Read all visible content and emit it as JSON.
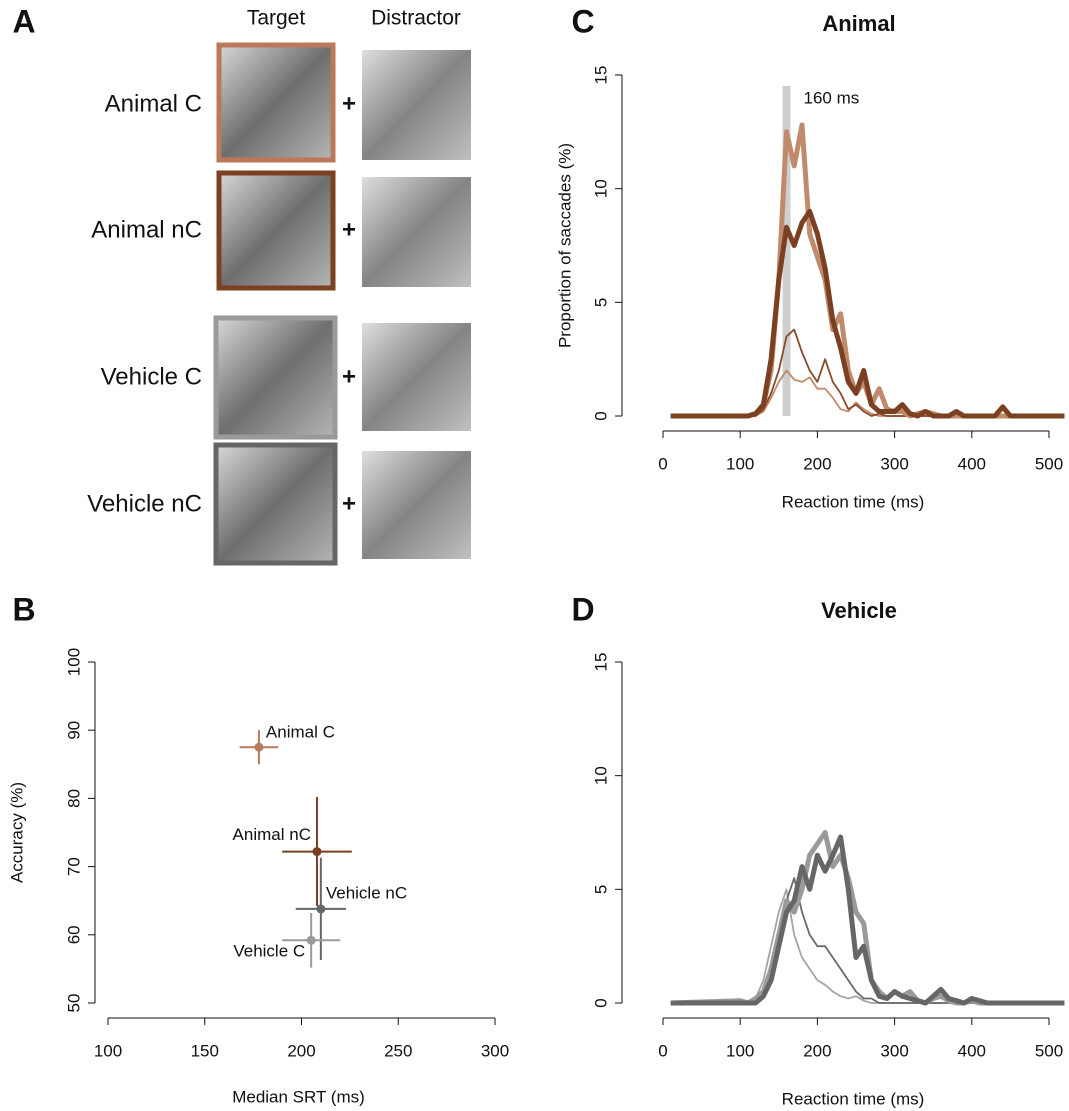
{
  "panel_labels": [
    "A",
    "B",
    "C",
    "D"
  ],
  "stimuli": {
    "headers": [
      "Target",
      "Distractor"
    ],
    "separator": "+",
    "rows": [
      {
        "label": "Animal C",
        "color": "#b9795a"
      },
      {
        "label": "Animal nC",
        "color": "#7b3f22"
      },
      {
        "label": "Vehicle C",
        "color": "#9a9a9a"
      },
      {
        "label": "Vehicle nC",
        "color": "#666666"
      }
    ]
  },
  "chart_data": [
    {
      "type": "scatter",
      "xlabel": "Median SRT (ms)",
      "ylabel": "Accuracy (%)",
      "xlim": [
        100,
        300
      ],
      "xticks": [
        100,
        150,
        200,
        250,
        300
      ],
      "ylim": [
        50,
        100
      ],
      "yticks": [
        50,
        60,
        70,
        80,
        90,
        100
      ],
      "series": [
        {
          "name": "Animal C",
          "color": "#b9795a",
          "x": [
            178
          ],
          "values": [
            87.5
          ],
          "xerr": [
            10
          ],
          "yerr": [
            2.5
          ]
        },
        {
          "name": "Animal nC",
          "color": "#7b3f22",
          "x": [
            208
          ],
          "values": [
            72.2
          ],
          "xerr": [
            18
          ],
          "yerr": [
            8
          ]
        },
        {
          "name": "Vehicle nC",
          "color": "#666666",
          "x": [
            210
          ],
          "values": [
            63.8
          ],
          "xerr": [
            13
          ],
          "yerr": [
            7.5
          ]
        },
        {
          "name": "Vehicle C",
          "color": "#9a9a9a",
          "x": [
            205
          ],
          "values": [
            59.2
          ],
          "xerr": [
            15
          ],
          "yerr": [
            4
          ]
        }
      ]
    },
    {
      "type": "line",
      "title": "Animal",
      "xlabel": "Reaction time (ms)",
      "ylabel": "Proportion of saccades (%)",
      "xlim": [
        0,
        500
      ],
      "xticks": [
        0,
        100,
        200,
        300,
        400,
        500
      ],
      "ylim": [
        0,
        15
      ],
      "yticks": [
        0,
        5,
        10,
        15
      ],
      "marker": {
        "value": 160,
        "label": "160 ms"
      },
      "x": [
        10,
        100,
        110,
        120,
        130,
        140,
        150,
        160,
        170,
        180,
        190,
        200,
        210,
        220,
        230,
        240,
        250,
        260,
        270,
        280,
        290,
        300,
        310,
        320,
        330,
        340,
        350,
        360,
        370,
        380,
        390,
        400,
        410,
        420,
        430,
        440,
        450,
        520
      ],
      "series": [
        {
          "color": "#c08a6c",
          "width": 1.8,
          "values": [
            0,
            0,
            0,
            0,
            0.2,
            0.8,
            1.5,
            2,
            1.6,
            1.5,
            1.7,
            1.2,
            1.2,
            0.8,
            0.3,
            0.2,
            0.6,
            0.3,
            0.1,
            0,
            0,
            0,
            0,
            0,
            0,
            0,
            0,
            0,
            0,
            0,
            0,
            0,
            0,
            0,
            0,
            0,
            0,
            0
          ]
        },
        {
          "color": "#8a4a2c",
          "width": 1.8,
          "values": [
            0,
            0,
            0,
            0,
            0.3,
            1,
            2,
            3.5,
            3.8,
            2.8,
            2,
            1.5,
            2.5,
            1.5,
            1,
            0.3,
            0.5,
            0.2,
            0,
            0.1,
            0,
            0,
            0,
            0,
            0,
            0,
            0,
            0,
            0,
            0,
            0,
            0,
            0,
            0,
            0,
            0,
            0,
            0
          ]
        },
        {
          "color": "#c08a6c",
          "width": 5,
          "values": [
            0,
            0,
            0,
            0.1,
            0.5,
            2,
            6,
            12.5,
            11,
            12.8,
            8,
            7,
            6,
            3.8,
            4.5,
            2,
            1,
            1.5,
            0.5,
            1.2,
            0.3,
            0.2,
            0.2,
            0,
            0.1,
            0.2,
            0.1,
            0,
            0,
            0,
            0,
            0,
            0,
            0,
            0,
            0,
            0,
            0
          ]
        },
        {
          "color": "#7b3f22",
          "width": 5,
          "values": [
            0,
            0,
            0,
            0.1,
            0.5,
            2.5,
            6,
            8.3,
            7.5,
            8.5,
            9,
            8,
            6.5,
            4.2,
            3,
            1.5,
            1,
            2,
            0.5,
            0.2,
            0.2,
            0.2,
            0.5,
            0.1,
            0,
            0.2,
            0,
            0,
            0,
            0.2,
            0,
            0,
            0,
            0,
            0,
            0.4,
            0,
            0
          ]
        }
      ]
    },
    {
      "type": "line",
      "title": "Vehicle",
      "xlabel": "Reaction time (ms)",
      "xlim": [
        0,
        500
      ],
      "xticks": [
        0,
        100,
        200,
        300,
        400,
        500
      ],
      "ylim": [
        0,
        15
      ],
      "yticks": [
        0,
        5,
        10,
        15
      ],
      "x": [
        10,
        100,
        110,
        120,
        130,
        140,
        150,
        160,
        170,
        180,
        190,
        200,
        210,
        220,
        230,
        240,
        250,
        260,
        270,
        280,
        290,
        300,
        310,
        320,
        330,
        340,
        350,
        360,
        370,
        380,
        390,
        400,
        410,
        420,
        430,
        440,
        450,
        520
      ],
      "series": [
        {
          "color": "#a5a5a5",
          "width": 1.8,
          "values": [
            0,
            0,
            0,
            0.2,
            1,
            2.5,
            4,
            5,
            3,
            2,
            1.5,
            1,
            0.8,
            0.5,
            0.3,
            0.2,
            0.3,
            0.1,
            0,
            0,
            0,
            0,
            0,
            0,
            0,
            0,
            0,
            0,
            0,
            0,
            0,
            0,
            0,
            0,
            0,
            0,
            0,
            0
          ]
        },
        {
          "color": "#6a6a6a",
          "width": 1.8,
          "values": [
            0,
            0,
            0,
            0,
            0.5,
            1.5,
            3,
            4.5,
            5.5,
            4,
            3,
            2.5,
            2.5,
            2,
            1.5,
            1,
            0.5,
            0.2,
            0.2,
            0,
            0,
            0,
            0,
            0,
            0,
            0,
            0,
            0,
            0,
            0,
            0,
            0,
            0,
            0,
            0,
            0,
            0,
            0
          ]
        },
        {
          "color": "#9a9a9a",
          "width": 5,
          "values": [
            0,
            0.1,
            0,
            0.2,
            0.5,
            1.5,
            3,
            4.5,
            4,
            5,
            6.5,
            7,
            7.5,
            6,
            6.5,
            5.5,
            4,
            3.5,
            1,
            0.5,
            0.2,
            0.5,
            0.3,
            0.5,
            0.1,
            0,
            0.2,
            0.3,
            0.1,
            0,
            0,
            0.1,
            0,
            0,
            0,
            0,
            0,
            0
          ]
        },
        {
          "color": "#666666",
          "width": 5,
          "values": [
            0,
            0,
            0,
            0,
            0.3,
            1,
            2.5,
            4,
            4.5,
            6,
            5,
            6.5,
            5.8,
            6.5,
            7.3,
            5,
            2,
            2.5,
            1,
            0.3,
            0.2,
            0.5,
            0.3,
            0.2,
            0.1,
            0,
            0.3,
            0.6,
            0.2,
            0.1,
            0,
            0.2,
            0.1,
            0,
            0,
            0,
            0,
            0
          ]
        }
      ]
    }
  ]
}
